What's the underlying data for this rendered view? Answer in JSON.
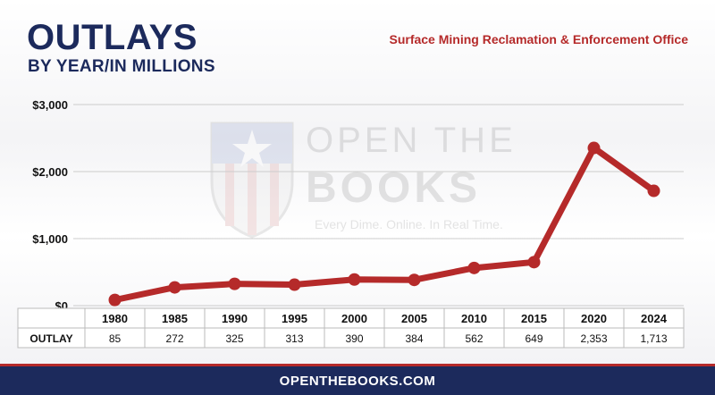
{
  "header": {
    "title": "OUTLAYS",
    "subtitle": "BY YEAR/IN MILLIONS",
    "agency": "Surface Mining Reclamation & Enforcement Office"
  },
  "watermark": {
    "line1": "OPEN THE",
    "line2": "BOOKS",
    "tagline": "Every Dime. Online. In Real Time."
  },
  "footer": {
    "url": "OPENTHEBOOKS.COM"
  },
  "colors": {
    "line": "#b52a2a",
    "navy": "#1c2a5c",
    "grid": "#cccccc"
  },
  "chart_data": {
    "type": "line",
    "categories": [
      "1980",
      "1985",
      "1990",
      "1995",
      "2000",
      "2005",
      "2010",
      "2015",
      "2020",
      "2024"
    ],
    "series": [
      {
        "name": "OUTLAY",
        "values": [
          85,
          272,
          325,
          313,
          390,
          384,
          562,
          649,
          2353,
          1713
        ]
      }
    ],
    "value_labels": [
      "85",
      "272",
      "325",
      "313",
      "390",
      "384",
      "562",
      "649",
      "2,353",
      "1,713"
    ],
    "yticks": [
      "$0",
      "$1,000",
      "$2,000",
      "$3,000"
    ],
    "ytick_values": [
      0,
      1000,
      2000,
      3000
    ],
    "ylim": [
      0,
      3000
    ],
    "grid": true,
    "table_row_label": "OUTLAY"
  }
}
